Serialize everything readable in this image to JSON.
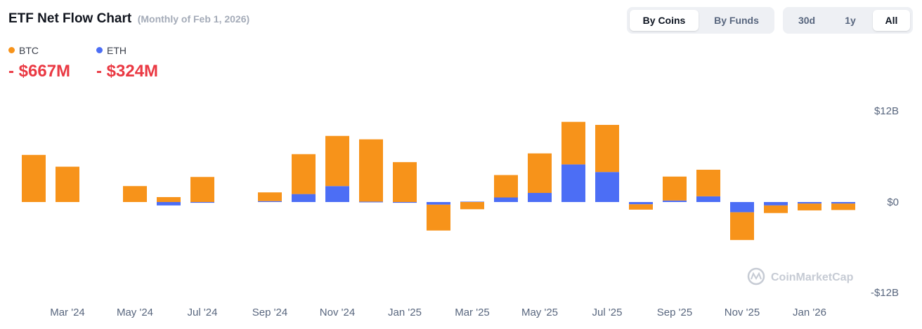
{
  "header": {
    "title": "ETF Net Flow Chart",
    "subtitle": "(Monthly of Feb 1, 2026)"
  },
  "legend": [
    {
      "name": "BTC",
      "value": "- $667M",
      "color": "#f7931a"
    },
    {
      "name": "ETH",
      "value": "- $324M",
      "color": "#4c6ef5"
    }
  ],
  "toggles": {
    "group": {
      "options": [
        "By Coins",
        "By Funds"
      ],
      "selected": "By Coins"
    },
    "range": {
      "options": [
        "30d",
        "1y",
        "All"
      ],
      "selected": "All"
    }
  },
  "watermark": "CoinMarketCap",
  "colors": {
    "btc": "#f7931a",
    "eth": "#4c6ef5",
    "negative": "#ea3943"
  },
  "chart_data": {
    "type": "bar",
    "stacked": true,
    "unit": "B",
    "x": [
      "2024-02",
      "2024-03",
      "2024-04",
      "2024-05",
      "2024-06",
      "2024-07",
      "2024-08",
      "2024-09",
      "2024-10",
      "2024-11",
      "2024-12",
      "2025-01",
      "2025-02",
      "2025-03",
      "2025-04",
      "2025-05",
      "2025-06",
      "2025-07",
      "2025-08",
      "2025-09",
      "2025-10",
      "2025-11",
      "2025-12",
      "2026-01",
      "2026-02"
    ],
    "x_tick_labels": [
      "Mar '24",
      "May '24",
      "Jul '24",
      "Sep '24",
      "Nov '24",
      "Jan '25",
      "Mar '25",
      "May '25",
      "Jul '25",
      "Sep '25",
      "Nov '25",
      "Jan '26"
    ],
    "y_tick_labels": [
      "$12B",
      "$0",
      "-$12B"
    ],
    "ylim": [
      -12,
      12
    ],
    "grid": false,
    "legend_position": "top-left",
    "series": [
      {
        "name": "ETH",
        "values": [
          0,
          0,
          0,
          0,
          -0.45,
          -0.1,
          0,
          0.12,
          1.05,
          2.1,
          0.05,
          -0.1,
          -0.35,
          0.05,
          0.6,
          1.2,
          4.95,
          3.95,
          -0.3,
          0.2,
          0.75,
          -1.35,
          -0.45,
          -0.2,
          -0.2
        ]
      },
      {
        "name": "BTC",
        "values": [
          6.2,
          4.65,
          0,
          2.1,
          0.65,
          3.3,
          0,
          1.15,
          5.25,
          6.6,
          8.2,
          5.25,
          -3.4,
          -0.95,
          2.95,
          5.2,
          5.6,
          6.2,
          -0.7,
          3.15,
          3.5,
          -3.65,
          -1.0,
          -0.9,
          -0.85
        ]
      }
    ]
  }
}
